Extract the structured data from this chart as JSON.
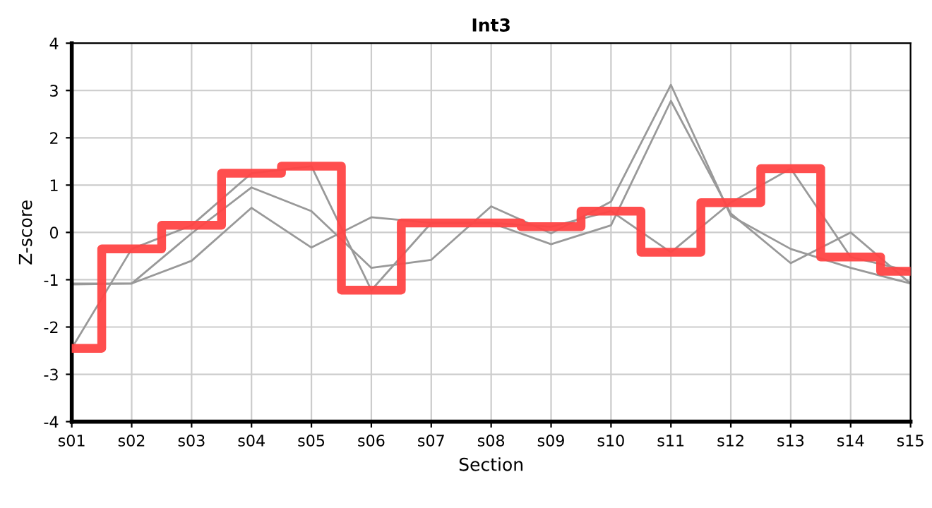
{
  "chart_data": {
    "type": "line",
    "title": "Int3",
    "xlabel": "Section",
    "ylabel": "Z-score",
    "categories": [
      "s01",
      "s02",
      "s03",
      "s04",
      "s05",
      "s06",
      "s07",
      "s08",
      "s09",
      "s10",
      "s11",
      "s12",
      "s13",
      "s14",
      "s15"
    ],
    "series": [
      {
        "color": "#999999",
        "values": [
          -2.45,
          -0.35,
          0.15,
          1.25,
          1.4,
          -1.22,
          0.2,
          0.2,
          0.12,
          0.45,
          -0.42,
          0.63,
          1.35,
          -0.52,
          -0.82
        ]
      },
      {
        "color": "#999999",
        "values": [
          -1.08,
          -1.08,
          -0.02,
          0.95,
          0.45,
          -0.75,
          -0.58,
          0.55,
          -0.02,
          0.65,
          3.12,
          0.35,
          -0.35,
          -0.75,
          -1.08
        ]
      },
      {
        "color": "#999999",
        "values": [
          -1.1,
          -1.08,
          -0.6,
          0.52,
          -0.32,
          0.32,
          0.2,
          0.2,
          -0.25,
          0.15,
          2.78,
          0.4,
          -0.65,
          0.0,
          -1.08
        ]
      },
      {
        "type": "step",
        "color": "#ff4444",
        "values": [
          -2.45,
          -0.35,
          0.15,
          1.25,
          1.4,
          -1.22,
          0.2,
          0.2,
          0.12,
          0.45,
          -0.42,
          0.63,
          1.35,
          -0.52,
          -0.82
        ]
      }
    ],
    "ylim": [
      -4,
      4
    ],
    "yticks": [
      -4,
      -3,
      -2,
      -1,
      0,
      1,
      2,
      3,
      4
    ],
    "grid": true,
    "legend": false,
    "marker": "none",
    "line_style": "solid"
  }
}
